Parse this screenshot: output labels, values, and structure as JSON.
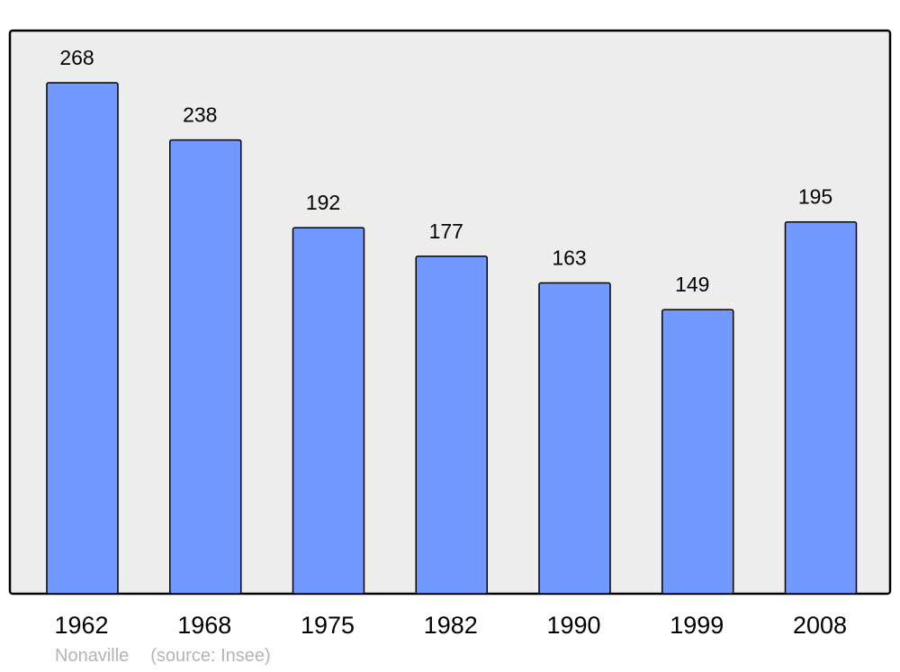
{
  "chart_data": {
    "type": "bar",
    "categories": [
      "1962",
      "1968",
      "1975",
      "1982",
      "1990",
      "1999",
      "2008"
    ],
    "values": [
      268,
      238,
      192,
      177,
      163,
      149,
      195
    ],
    "title": "",
    "xlabel": "",
    "ylabel": "",
    "grid": false,
    "data_labels": true,
    "colors": {
      "bar": "#7299ff",
      "plot_background": "#ededed",
      "border": "#000000",
      "footer_text": "#b4b4b4"
    }
  },
  "footer": {
    "place": "Nonaville",
    "source": "(source: Insee)"
  }
}
